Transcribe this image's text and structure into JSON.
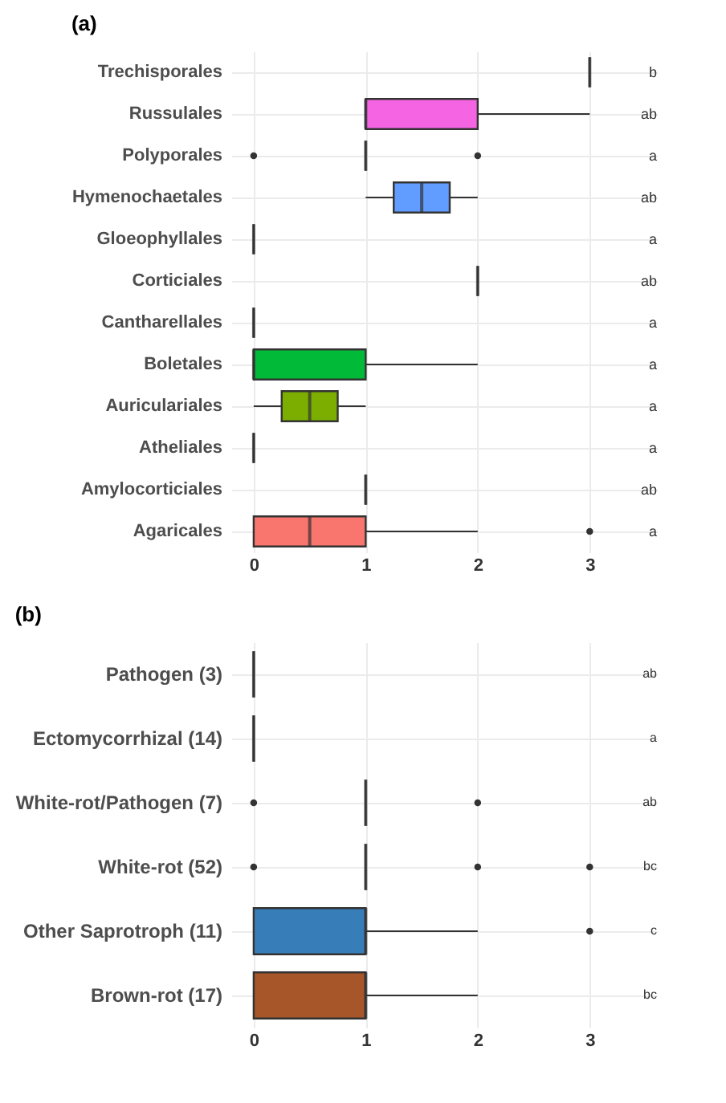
{
  "chart_data": [
    {
      "type": "box",
      "title": "(a)",
      "orientation": "horizontal",
      "categories": [
        "Trechisporales",
        "Russulales",
        "Polyporales",
        "Hymenochaetales",
        "Gloeophyllales",
        "Corticiales",
        "Cantharellales",
        "Boletales",
        "Auriculariales",
        "Atheliales",
        "Amylocorticiales",
        "Agaricales"
      ],
      "colors": [
        "#333333",
        "#f564e3",
        "#333333",
        "#619cff",
        "#333333",
        "#333333",
        "#333333",
        "#00ba38",
        "#7cae00",
        "#333333",
        "#333333",
        "#f8766d"
      ],
      "boxes": [
        {
          "low": 3,
          "q1": 3,
          "median": 3,
          "q3": 3,
          "high": 3
        },
        {
          "low": 1,
          "q1": 1,
          "median": 1,
          "q3": 2,
          "high": 3
        },
        {
          "low": 1,
          "q1": 1,
          "median": 1,
          "q3": 1,
          "high": 1,
          "outliers": [
            0,
            2
          ]
        },
        {
          "low": 1,
          "q1": 1.25,
          "median": 1.5,
          "q3": 1.75,
          "high": 2
        },
        {
          "low": 0,
          "q1": 0,
          "median": 0,
          "q3": 0,
          "high": 0
        },
        {
          "low": 2,
          "q1": 2,
          "median": 2,
          "q3": 2,
          "high": 2
        },
        {
          "low": 0,
          "q1": 0,
          "median": 0,
          "q3": 0,
          "high": 0
        },
        {
          "low": 0,
          "q1": 0,
          "median": 0,
          "q3": 1,
          "high": 2
        },
        {
          "low": 0,
          "q1": 0.25,
          "median": 0.5,
          "q3": 0.75,
          "high": 1
        },
        {
          "low": 0,
          "q1": 0,
          "median": 0,
          "q3": 0,
          "high": 0
        },
        {
          "low": 1,
          "q1": 1,
          "median": 1,
          "q3": 1,
          "high": 1
        },
        {
          "low": 0,
          "q1": 0,
          "median": 0.5,
          "q3": 1,
          "high": 2,
          "outliers": [
            3
          ]
        }
      ],
      "xlim": [
        -0.2,
        3.6
      ],
      "xticks": [
        0,
        1,
        2,
        3
      ],
      "grid": true,
      "annotations": [
        "b",
        "ab",
        "a",
        "ab",
        "a",
        "ab",
        "a",
        "a",
        "a",
        "a",
        "ab",
        "a"
      ]
    },
    {
      "type": "box",
      "title": "(b)",
      "orientation": "horizontal",
      "categories": [
        "Pathogen (3)",
        "Ectomycorrhizal (14)",
        "White-rot/Pathogen (7)",
        "White-rot (52)",
        "Other Saprotroph (11)",
        "Brown-rot (17)"
      ],
      "colors": [
        "#333333",
        "#333333",
        "#333333",
        "#333333",
        "#377eb8",
        "#a65628"
      ],
      "boxes": [
        {
          "low": 0,
          "q1": 0,
          "median": 0,
          "q3": 0,
          "high": 0
        },
        {
          "low": 0,
          "q1": 0,
          "median": 0,
          "q3": 0,
          "high": 0
        },
        {
          "low": 1,
          "q1": 1,
          "median": 1,
          "q3": 1,
          "high": 1,
          "outliers": [
            0,
            2
          ]
        },
        {
          "low": 1,
          "q1": 1,
          "median": 1,
          "q3": 1,
          "high": 1,
          "outliers": [
            0,
            2,
            3
          ]
        },
        {
          "low": 0,
          "q1": 0,
          "median": 1,
          "q3": 1,
          "high": 2,
          "outliers": [
            3
          ]
        },
        {
          "low": 0,
          "q1": 0,
          "median": 1,
          "q3": 1,
          "high": 2
        }
      ],
      "xlim": [
        -0.2,
        3.6
      ],
      "xticks": [
        0,
        1,
        2,
        3
      ],
      "grid": true,
      "annotations": [
        "ab",
        "a",
        "ab",
        "bc",
        "c",
        "bc"
      ]
    }
  ]
}
